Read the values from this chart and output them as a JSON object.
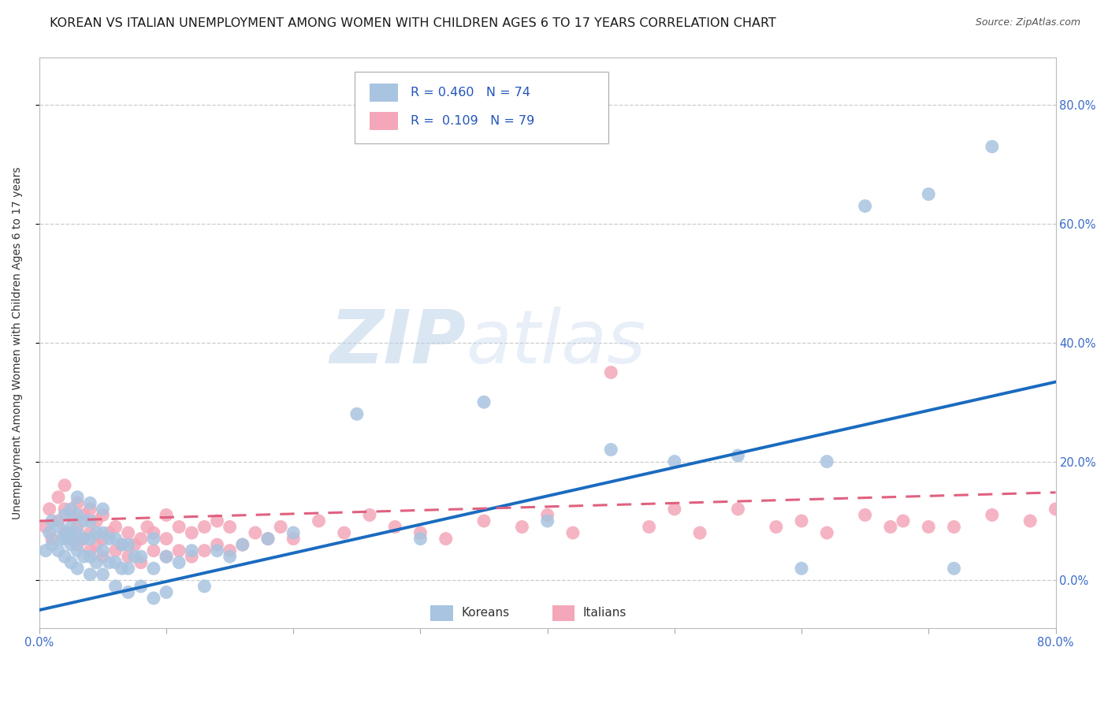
{
  "title": "KOREAN VS ITALIAN UNEMPLOYMENT AMONG WOMEN WITH CHILDREN AGES 6 TO 17 YEARS CORRELATION CHART",
  "source": "Source: ZipAtlas.com",
  "ylabel": "Unemployment Among Women with Children Ages 6 to 17 years",
  "xlim": [
    0.0,
    0.8
  ],
  "ylim": [
    -0.08,
    0.88
  ],
  "korean_color": "#a8c4e0",
  "italian_color": "#f4a7b9",
  "korean_line_color": "#1a6bbf",
  "italian_line_color": "#e06080",
  "korean_R": 0.46,
  "korean_N": 74,
  "italian_R": 0.109,
  "italian_N": 79,
  "watermark_zip": "ZIP",
  "watermark_atlas": "atlas",
  "legend_labels": [
    "Koreans",
    "Italians"
  ],
  "background_color": "#ffffff",
  "grid_color": "#cccccc",
  "title_fontsize": 11.5,
  "axis_label_fontsize": 10,
  "tick_fontsize": 10.5,
  "right_ytick_labels": [
    "0.0%",
    "20.0%",
    "40.0%",
    "60.0%",
    "80.0%"
  ],
  "right_yticks": [
    0.0,
    0.2,
    0.4,
    0.6,
    0.8
  ],
  "korean_scatter_x": [
    0.005,
    0.008,
    0.01,
    0.01,
    0.015,
    0.015,
    0.018,
    0.02,
    0.02,
    0.02,
    0.022,
    0.025,
    0.025,
    0.025,
    0.025,
    0.028,
    0.03,
    0.03,
    0.03,
    0.03,
    0.03,
    0.035,
    0.035,
    0.035,
    0.04,
    0.04,
    0.04,
    0.04,
    0.04,
    0.045,
    0.045,
    0.05,
    0.05,
    0.05,
    0.05,
    0.055,
    0.055,
    0.06,
    0.06,
    0.06,
    0.065,
    0.065,
    0.07,
    0.07,
    0.07,
    0.075,
    0.08,
    0.08,
    0.09,
    0.09,
    0.09,
    0.1,
    0.1,
    0.11,
    0.12,
    0.13,
    0.14,
    0.15,
    0.16,
    0.18,
    0.2,
    0.25,
    0.3,
    0.35,
    0.4,
    0.45,
    0.5,
    0.55,
    0.6,
    0.62,
    0.65,
    0.7,
    0.72,
    0.75
  ],
  "korean_scatter_y": [
    0.05,
    0.08,
    0.06,
    0.1,
    0.05,
    0.09,
    0.07,
    0.04,
    0.07,
    0.11,
    0.08,
    0.03,
    0.06,
    0.09,
    0.12,
    0.07,
    0.02,
    0.05,
    0.08,
    0.11,
    0.14,
    0.04,
    0.07,
    0.1,
    0.01,
    0.04,
    0.07,
    0.1,
    0.13,
    0.03,
    0.08,
    0.01,
    0.05,
    0.08,
    0.12,
    0.03,
    0.07,
    -0.01,
    0.03,
    0.07,
    0.02,
    0.06,
    -0.02,
    0.02,
    0.06,
    0.04,
    -0.01,
    0.04,
    -0.03,
    0.02,
    0.07,
    -0.02,
    0.04,
    0.03,
    0.05,
    -0.01,
    0.05,
    0.04,
    0.06,
    0.07,
    0.08,
    0.28,
    0.07,
    0.3,
    0.1,
    0.22,
    0.2,
    0.21,
    0.02,
    0.2,
    0.63,
    0.65,
    0.02,
    0.73
  ],
  "italian_scatter_x": [
    0.005,
    0.008,
    0.01,
    0.015,
    0.015,
    0.02,
    0.02,
    0.02,
    0.025,
    0.025,
    0.03,
    0.03,
    0.03,
    0.035,
    0.035,
    0.04,
    0.04,
    0.04,
    0.045,
    0.045,
    0.05,
    0.05,
    0.05,
    0.055,
    0.06,
    0.06,
    0.065,
    0.07,
    0.07,
    0.075,
    0.08,
    0.08,
    0.085,
    0.09,
    0.09,
    0.1,
    0.1,
    0.1,
    0.11,
    0.11,
    0.12,
    0.12,
    0.13,
    0.13,
    0.14,
    0.14,
    0.15,
    0.15,
    0.16,
    0.17,
    0.18,
    0.19,
    0.2,
    0.22,
    0.24,
    0.26,
    0.28,
    0.3,
    0.32,
    0.35,
    0.38,
    0.4,
    0.42,
    0.45,
    0.48,
    0.5,
    0.52,
    0.55,
    0.58,
    0.6,
    0.62,
    0.65,
    0.67,
    0.68,
    0.7,
    0.72,
    0.75,
    0.78,
    0.8
  ],
  "italian_scatter_y": [
    0.09,
    0.12,
    0.07,
    0.1,
    0.14,
    0.08,
    0.12,
    0.16,
    0.07,
    0.11,
    0.06,
    0.09,
    0.13,
    0.07,
    0.11,
    0.05,
    0.08,
    0.12,
    0.06,
    0.1,
    0.04,
    0.07,
    0.11,
    0.08,
    0.05,
    0.09,
    0.06,
    0.04,
    0.08,
    0.06,
    0.03,
    0.07,
    0.09,
    0.05,
    0.08,
    0.04,
    0.07,
    0.11,
    0.05,
    0.09,
    0.04,
    0.08,
    0.05,
    0.09,
    0.06,
    0.1,
    0.05,
    0.09,
    0.06,
    0.08,
    0.07,
    0.09,
    0.07,
    0.1,
    0.08,
    0.11,
    0.09,
    0.08,
    0.07,
    0.1,
    0.09,
    0.11,
    0.08,
    0.35,
    0.09,
    0.12,
    0.08,
    0.12,
    0.09,
    0.1,
    0.08,
    0.11,
    0.09,
    0.1,
    0.09,
    0.09,
    0.11,
    0.1,
    0.12
  ]
}
